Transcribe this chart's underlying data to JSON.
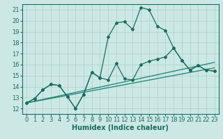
{
  "title": "",
  "xlabel": "Humidex (Indice chaleur)",
  "bg_color": "#cce8e4",
  "grid_color": "#aacfcb",
  "line_color_dark": "#1a6b60",
  "line_color_mid": "#1a8070",
  "xlim": [
    -0.5,
    23.5
  ],
  "ylim": [
    11.5,
    21.5
  ],
  "xticks": [
    0,
    1,
    2,
    3,
    4,
    5,
    6,
    7,
    8,
    9,
    10,
    11,
    12,
    13,
    14,
    15,
    16,
    17,
    18,
    19,
    20,
    21,
    22,
    23
  ],
  "yticks": [
    12,
    13,
    14,
    15,
    16,
    17,
    18,
    19,
    20,
    21
  ],
  "series1_x": [
    0,
    1,
    2,
    3,
    4,
    5,
    6,
    7,
    8,
    9,
    10,
    11,
    12,
    13,
    14,
    15,
    16,
    17,
    18,
    19,
    20,
    21,
    22,
    23
  ],
  "series1_y": [
    12.5,
    12.9,
    13.7,
    14.2,
    14.1,
    13.1,
    12.0,
    13.3,
    15.3,
    14.8,
    18.5,
    19.8,
    19.9,
    19.2,
    21.2,
    21.0,
    19.5,
    19.1,
    17.5,
    16.4,
    15.5,
    15.9,
    15.5,
    15.4
  ],
  "series2_x": [
    0,
    1,
    2,
    3,
    4,
    5,
    6,
    7,
    8,
    9,
    10,
    11,
    12,
    13,
    14,
    15,
    16,
    17,
    18,
    19,
    20,
    21,
    22,
    23
  ],
  "series2_y": [
    12.5,
    12.9,
    13.7,
    14.2,
    14.1,
    13.1,
    12.0,
    13.3,
    15.3,
    14.8,
    14.6,
    16.1,
    14.7,
    14.6,
    16.0,
    16.3,
    16.5,
    16.7,
    17.5,
    16.4,
    15.5,
    15.9,
    15.5,
    15.4
  ],
  "trend1_x": [
    0,
    23
  ],
  "trend1_y": [
    12.5,
    15.7
  ],
  "trend2_x": [
    0,
    23
  ],
  "trend2_y": [
    12.5,
    16.2
  ],
  "fontsize_label": 7,
  "fontsize_tick": 6,
  "markersize": 2.0,
  "linewidth": 0.9
}
